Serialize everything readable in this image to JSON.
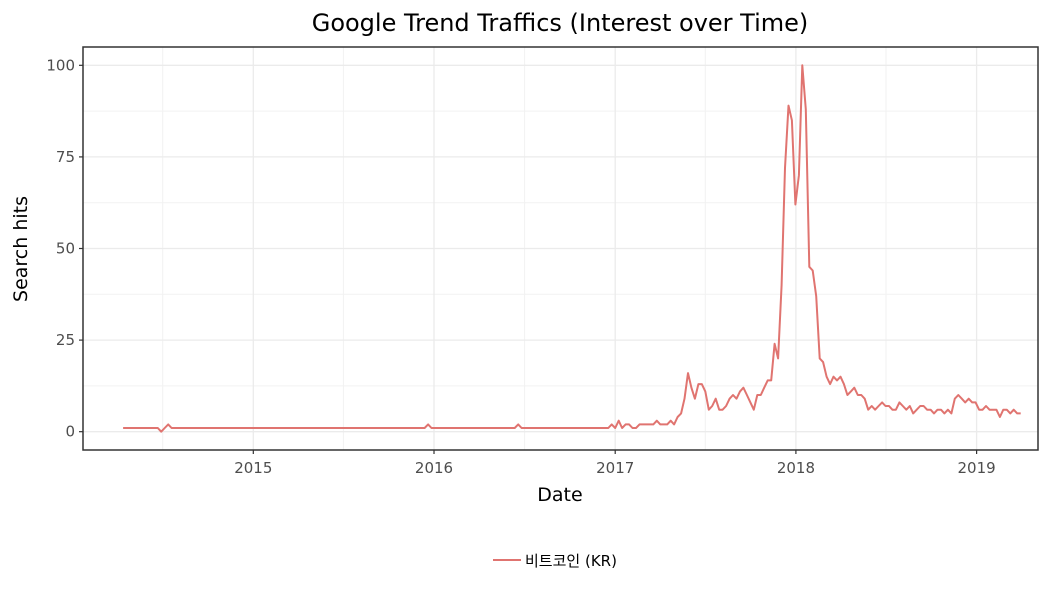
{
  "chart_data": {
    "type": "line",
    "title": "Google Trend Traffics (Interest over Time)",
    "xlabel": "Date",
    "ylabel": "Search hits",
    "x_range": [
      "2014-01-22",
      "2019-05-05"
    ],
    "ylim": [
      -5,
      105
    ],
    "x_ticks": [
      {
        "label": "2015",
        "date": "2015-01-01"
      },
      {
        "label": "2016",
        "date": "2016-01-01"
      },
      {
        "label": "2017",
        "date": "2017-01-01"
      },
      {
        "label": "2018",
        "date": "2018-01-01"
      },
      {
        "label": "2019",
        "date": "2019-01-01"
      }
    ],
    "y_ticks": [
      0,
      25,
      50,
      75,
      100
    ],
    "grid": true,
    "legend_position": "bottom",
    "series": [
      {
        "name": "비트코인 (KR)",
        "color": "#e07470",
        "points": [
          [
            "2014-04-13",
            1
          ],
          [
            "2014-06-22",
            1
          ],
          [
            "2014-06-29",
            0
          ],
          [
            "2014-07-06",
            1
          ],
          [
            "2014-07-13",
            2
          ],
          [
            "2014-07-20",
            1
          ],
          [
            "2015-06-28",
            1
          ],
          [
            "2015-12-13",
            1
          ],
          [
            "2015-12-20",
            2
          ],
          [
            "2015-12-27",
            1
          ],
          [
            "2016-06-12",
            1
          ],
          [
            "2016-06-19",
            2
          ],
          [
            "2016-06-26",
            1
          ],
          [
            "2016-12-18",
            1
          ],
          [
            "2016-12-25",
            2
          ],
          [
            "2017-01-01",
            1
          ],
          [
            "2017-01-08",
            3
          ],
          [
            "2017-01-15",
            1
          ],
          [
            "2017-01-22",
            2
          ],
          [
            "2017-01-29",
            2
          ],
          [
            "2017-02-05",
            1
          ],
          [
            "2017-02-12",
            1
          ],
          [
            "2017-02-19",
            2
          ],
          [
            "2017-03-19",
            2
          ],
          [
            "2017-03-26",
            3
          ],
          [
            "2017-04-02",
            2
          ],
          [
            "2017-04-16",
            2
          ],
          [
            "2017-04-23",
            3
          ],
          [
            "2017-04-30",
            2
          ],
          [
            "2017-05-07",
            4
          ],
          [
            "2017-05-14",
            5
          ],
          [
            "2017-05-21",
            9
          ],
          [
            "2017-05-28",
            16
          ],
          [
            "2017-06-04",
            12
          ],
          [
            "2017-06-11",
            9
          ],
          [
            "2017-06-18",
            13
          ],
          [
            "2017-06-25",
            13
          ],
          [
            "2017-07-02",
            11
          ],
          [
            "2017-07-09",
            6
          ],
          [
            "2017-07-16",
            7
          ],
          [
            "2017-07-23",
            9
          ],
          [
            "2017-07-30",
            6
          ],
          [
            "2017-08-06",
            6
          ],
          [
            "2017-08-13",
            7
          ],
          [
            "2017-08-20",
            9
          ],
          [
            "2017-08-27",
            10
          ],
          [
            "2017-09-03",
            9
          ],
          [
            "2017-09-10",
            11
          ],
          [
            "2017-09-17",
            12
          ],
          [
            "2017-09-24",
            10
          ],
          [
            "2017-10-01",
            8
          ],
          [
            "2017-10-08",
            6
          ],
          [
            "2017-10-15",
            10
          ],
          [
            "2017-10-22",
            10
          ],
          [
            "2017-10-29",
            12
          ],
          [
            "2017-11-05",
            14
          ],
          [
            "2017-11-12",
            14
          ],
          [
            "2017-11-19",
            24
          ],
          [
            "2017-11-26",
            20
          ],
          [
            "2017-12-03",
            40
          ],
          [
            "2017-12-10",
            72
          ],
          [
            "2017-12-17",
            89
          ],
          [
            "2017-12-24",
            85
          ],
          [
            "2017-12-31",
            62
          ],
          [
            "2018-01-07",
            70
          ],
          [
            "2018-01-14",
            100
          ],
          [
            "2018-01-21",
            88
          ],
          [
            "2018-01-28",
            45
          ],
          [
            "2018-02-04",
            44
          ],
          [
            "2018-02-11",
            37
          ],
          [
            "2018-02-18",
            20
          ],
          [
            "2018-02-25",
            19
          ],
          [
            "2018-03-04",
            15
          ],
          [
            "2018-03-11",
            13
          ],
          [
            "2018-03-18",
            15
          ],
          [
            "2018-03-25",
            14
          ],
          [
            "2018-04-01",
            15
          ],
          [
            "2018-04-08",
            13
          ],
          [
            "2018-04-15",
            10
          ],
          [
            "2018-04-22",
            11
          ],
          [
            "2018-04-29",
            12
          ],
          [
            "2018-05-06",
            10
          ],
          [
            "2018-05-13",
            10
          ],
          [
            "2018-05-20",
            9
          ],
          [
            "2018-05-27",
            6
          ],
          [
            "2018-06-03",
            7
          ],
          [
            "2018-06-10",
            6
          ],
          [
            "2018-06-17",
            7
          ],
          [
            "2018-06-24",
            8
          ],
          [
            "2018-07-01",
            7
          ],
          [
            "2018-07-08",
            7
          ],
          [
            "2018-07-15",
            6
          ],
          [
            "2018-07-22",
            6
          ],
          [
            "2018-07-29",
            8
          ],
          [
            "2018-08-05",
            7
          ],
          [
            "2018-08-12",
            6
          ],
          [
            "2018-08-19",
            7
          ],
          [
            "2018-08-26",
            5
          ],
          [
            "2018-09-02",
            6
          ],
          [
            "2018-09-09",
            7
          ],
          [
            "2018-09-16",
            7
          ],
          [
            "2018-09-23",
            6
          ],
          [
            "2018-09-30",
            6
          ],
          [
            "2018-10-07",
            5
          ],
          [
            "2018-10-14",
            6
          ],
          [
            "2018-10-21",
            6
          ],
          [
            "2018-10-28",
            5
          ],
          [
            "2018-11-04",
            6
          ],
          [
            "2018-11-11",
            5
          ],
          [
            "2018-11-18",
            9
          ],
          [
            "2018-11-25",
            10
          ],
          [
            "2018-12-02",
            9
          ],
          [
            "2018-12-09",
            8
          ],
          [
            "2018-12-16",
            9
          ],
          [
            "2018-12-23",
            8
          ],
          [
            "2018-12-30",
            8
          ],
          [
            "2019-01-06",
            6
          ],
          [
            "2019-01-13",
            6
          ],
          [
            "2019-01-20",
            7
          ],
          [
            "2019-01-27",
            6
          ],
          [
            "2019-02-03",
            6
          ],
          [
            "2019-02-10",
            6
          ],
          [
            "2019-02-17",
            4
          ],
          [
            "2019-02-24",
            6
          ],
          [
            "2019-03-03",
            6
          ],
          [
            "2019-03-10",
            5
          ],
          [
            "2019-03-17",
            6
          ],
          [
            "2019-03-24",
            5
          ],
          [
            "2019-03-31",
            5
          ]
        ]
      }
    ]
  }
}
